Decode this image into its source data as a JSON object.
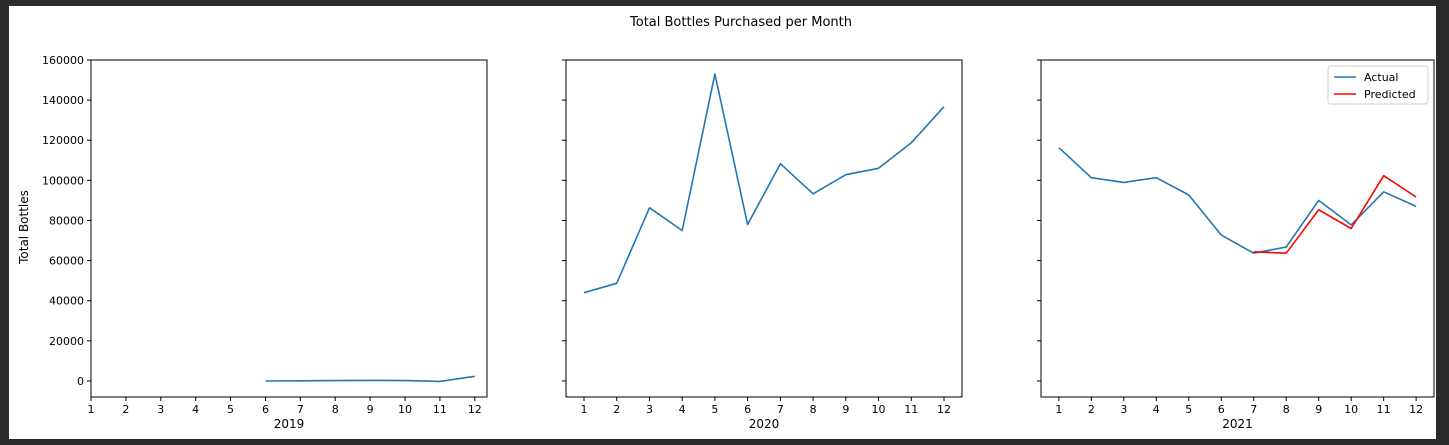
{
  "figure": {
    "title": "Total Bottles Purchased per Month",
    "background": "#ffffff",
    "frame_color": "#2b2b2b"
  },
  "colors": {
    "actual": "#1f77b4",
    "predicted": "#ff0000"
  },
  "chart_data": [
    {
      "type": "line",
      "xlabel": "2019",
      "ylabel": "Total Bottles",
      "xticks": [
        1,
        2,
        3,
        4,
        5,
        6,
        7,
        8,
        9,
        10,
        11,
        12
      ],
      "yticks": [
        0,
        20000,
        40000,
        60000,
        80000,
        100000,
        120000,
        140000,
        160000
      ],
      "ylim": [
        -8000,
        160000
      ],
      "xlim": [
        1,
        12.35
      ],
      "grid": false,
      "series": [
        {
          "name": "",
          "color": "#1f77b4",
          "x": [
            6,
            7,
            8,
            9,
            10,
            11,
            12
          ],
          "y": [
            0,
            100,
            200,
            300,
            200,
            -200,
            2300
          ]
        }
      ]
    },
    {
      "type": "line",
      "xlabel": "2020",
      "ylabel": "",
      "xticks": [
        1,
        2,
        3,
        4,
        5,
        6,
        7,
        8,
        9,
        10,
        11,
        12
      ],
      "yticks": [
        0,
        20000,
        40000,
        60000,
        80000,
        100000,
        120000,
        140000,
        160000
      ],
      "ylim": [
        -8000,
        160000
      ],
      "xlim": [
        0.45,
        12.55
      ],
      "grid": false,
      "series": [
        {
          "name": "",
          "color": "#1f77b4",
          "x": [
            1,
            2,
            3,
            4,
            5,
            6,
            7,
            8,
            9,
            10,
            11,
            12
          ],
          "y": [
            44000,
            48700,
            86300,
            75000,
            153000,
            78000,
            108300,
            93300,
            102800,
            106000,
            118700,
            136700
          ]
        }
      ]
    },
    {
      "type": "line",
      "xlabel": "2021",
      "ylabel": "",
      "xticks": [
        1,
        2,
        3,
        4,
        5,
        6,
        7,
        8,
        9,
        10,
        11,
        12
      ],
      "yticks": [
        0,
        20000,
        40000,
        60000,
        80000,
        100000,
        120000,
        140000,
        160000
      ],
      "ylim": [
        -8000,
        160000
      ],
      "xlim": [
        0.45,
        12.55
      ],
      "grid": false,
      "legend": {
        "position": "top-right",
        "entries": [
          "Actual",
          "Predicted"
        ]
      },
      "series": [
        {
          "name": "Actual",
          "color": "#1f77b4",
          "x": [
            1,
            2,
            3,
            4,
            5,
            6,
            7,
            8,
            9,
            10,
            11,
            12
          ],
          "y": [
            116300,
            101300,
            99000,
            101300,
            92700,
            72700,
            63700,
            66800,
            90000,
            77800,
            94300,
            87000
          ]
        },
        {
          "name": "Predicted",
          "color": "#ff0000",
          "x": [
            7,
            8,
            9,
            10,
            11,
            12
          ],
          "y": [
            64400,
            63700,
            85300,
            76000,
            102300,
            91700
          ]
        }
      ]
    }
  ]
}
